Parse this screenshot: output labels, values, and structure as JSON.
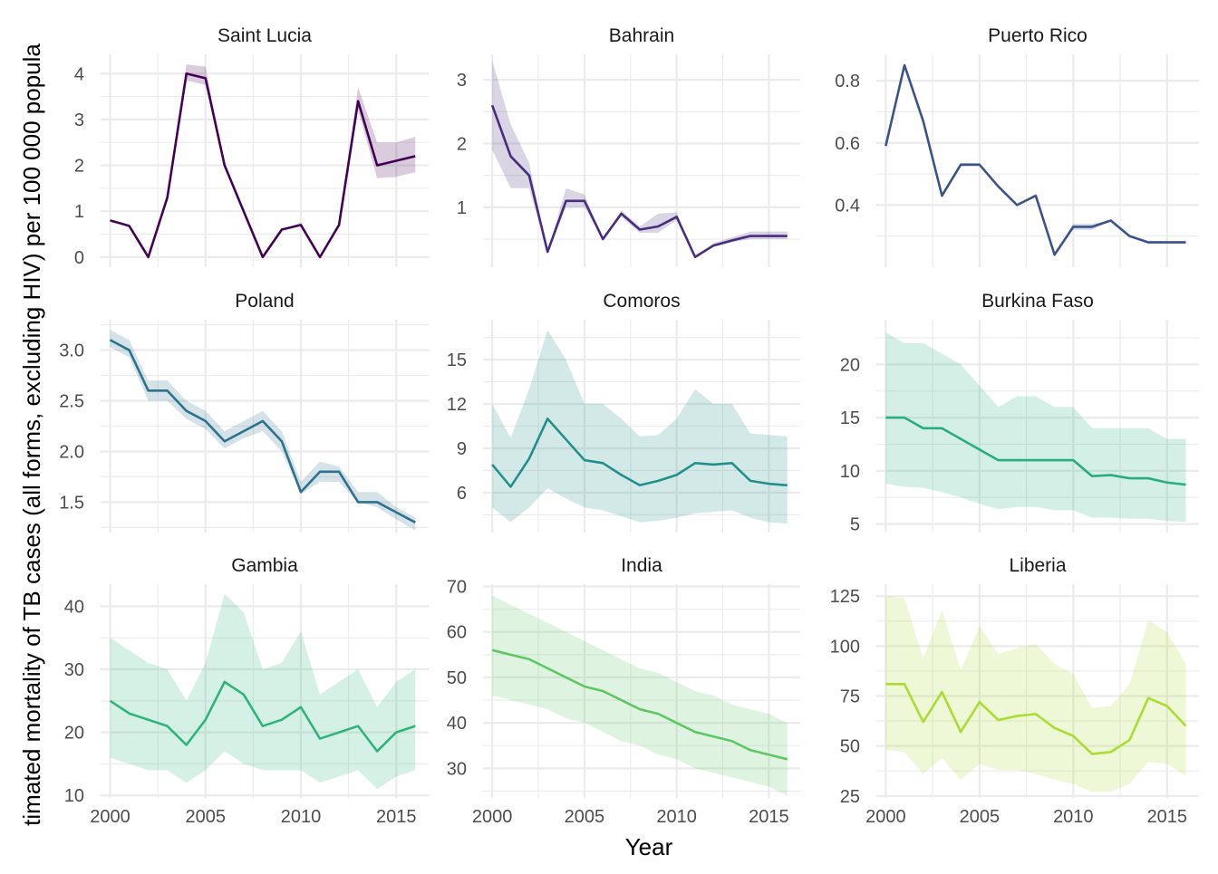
{
  "chart_data": {
    "type": "line",
    "xlabel": "Year",
    "ylabel": "timated mortality of TB cases (all forms, excluding HIV) per 100 000 popula",
    "grid": true,
    "legend": "none",
    "x_ticks": [
      2000,
      2005,
      2010,
      2015
    ],
    "panels": [
      {
        "title": "Saint Lucia",
        "color": "#440154",
        "yticks": [
          0,
          1,
          2,
          3,
          4
        ],
        "ytick_labels": [
          "0",
          "1",
          "2",
          "3",
          "4"
        ],
        "ylim": [
          -0.22,
          4.42
        ],
        "x": [
          2000,
          2001,
          2002,
          2003,
          2004,
          2005,
          2006,
          2007,
          2008,
          2009,
          2010,
          2011,
          2012,
          2013,
          2014,
          2015,
          2016
        ],
        "values": [
          0.8,
          0.68,
          0,
          1.3,
          4.0,
          3.9,
          2.0,
          1.0,
          0,
          0.6,
          0.7,
          0,
          0.7,
          3.4,
          2.0,
          2.1,
          2.2
        ],
        "lower": [
          0.8,
          0.68,
          0,
          1.3,
          3.85,
          3.75,
          2.0,
          1.0,
          0,
          0.6,
          0.68,
          0,
          0.7,
          3.2,
          1.72,
          1.75,
          1.85
        ],
        "upper": [
          0.8,
          0.68,
          0,
          1.3,
          4.2,
          4.15,
          2.0,
          1.0,
          0,
          0.6,
          0.75,
          0,
          0.7,
          3.7,
          2.5,
          2.5,
          2.62
        ]
      },
      {
        "title": "Bahrain",
        "color": "#472D7B",
        "yticks": [
          1,
          2,
          3
        ],
        "ytick_labels": [
          "1",
          "2",
          "3"
        ],
        "ylim": [
          0.06,
          3.4
        ],
        "x": [
          2000,
          2001,
          2002,
          2003,
          2004,
          2005,
          2006,
          2007,
          2008,
          2009,
          2010,
          2011,
          2012,
          2013,
          2014,
          2015,
          2016
        ],
        "values": [
          2.6,
          1.8,
          1.5,
          0.3,
          1.1,
          1.1,
          0.5,
          0.9,
          0.65,
          0.7,
          0.85,
          0.22,
          0.4,
          0.48,
          0.55,
          0.55,
          0.55
        ],
        "lower": [
          1.9,
          1.3,
          1.3,
          0.3,
          1.0,
          1.0,
          0.5,
          0.85,
          0.6,
          0.6,
          0.8,
          0.22,
          0.38,
          0.45,
          0.5,
          0.5,
          0.5
        ],
        "upper": [
          3.3,
          2.3,
          1.7,
          0.3,
          1.3,
          1.2,
          0.5,
          0.95,
          0.7,
          0.9,
          0.92,
          0.22,
          0.44,
          0.53,
          0.62,
          0.62,
          0.62
        ]
      },
      {
        "title": "Puerto Rico",
        "color": "#3B528B",
        "yticks": [
          0.4,
          0.6,
          0.8
        ],
        "ytick_labels": [
          "0.4",
          "0.6",
          "0.8"
        ],
        "ylim": [
          0.2,
          0.885
        ],
        "x": [
          2000,
          2001,
          2002,
          2003,
          2004,
          2005,
          2006,
          2007,
          2008,
          2009,
          2010,
          2011,
          2012,
          2013,
          2014,
          2015,
          2016
        ],
        "values": [
          0.59,
          0.85,
          0.67,
          0.43,
          0.53,
          0.53,
          0.46,
          0.4,
          0.43,
          0.24,
          0.33,
          0.33,
          0.35,
          0.3,
          0.28,
          0.28,
          0.28
        ],
        "lower": [
          0.59,
          0.85,
          0.67,
          0.43,
          0.525,
          0.525,
          0.46,
          0.4,
          0.43,
          0.24,
          0.32,
          0.32,
          0.35,
          0.295,
          0.275,
          0.275,
          0.275
        ],
        "upper": [
          0.59,
          0.85,
          0.67,
          0.43,
          0.535,
          0.535,
          0.46,
          0.4,
          0.43,
          0.24,
          0.34,
          0.34,
          0.35,
          0.305,
          0.285,
          0.285,
          0.285
        ]
      },
      {
        "title": "Poland",
        "color": "#2C728E",
        "yticks": [
          1.5,
          2.0,
          2.5,
          3.0
        ],
        "ytick_labels": [
          "1.5",
          "2.0",
          "2.5",
          "3.0"
        ],
        "ylim": [
          1.2,
          3.3
        ],
        "x": [
          2000,
          2001,
          2002,
          2003,
          2004,
          2005,
          2006,
          2007,
          2008,
          2009,
          2010,
          2011,
          2012,
          2013,
          2014,
          2015,
          2016
        ],
        "values": [
          3.1,
          3.0,
          2.6,
          2.6,
          2.4,
          2.3,
          2.1,
          2.2,
          2.3,
          2.1,
          1.6,
          1.8,
          1.8,
          1.5,
          1.5,
          1.4,
          1.3
        ],
        "lower": [
          3.03,
          2.93,
          2.5,
          2.5,
          2.32,
          2.22,
          2.03,
          2.13,
          2.2,
          2.0,
          1.58,
          1.7,
          1.7,
          1.5,
          1.45,
          1.33,
          1.22
        ],
        "upper": [
          3.2,
          3.1,
          2.7,
          2.7,
          2.5,
          2.4,
          2.2,
          2.3,
          2.4,
          2.2,
          1.7,
          1.9,
          1.85,
          1.6,
          1.6,
          1.45,
          1.35
        ]
      },
      {
        "title": "Comoros",
        "color": "#21908C",
        "yticks": [
          6,
          9,
          12,
          15
        ],
        "ytick_labels": [
          "6",
          "9",
          "12",
          "15"
        ],
        "ylim": [
          3.3,
          17.7
        ],
        "x": [
          2000,
          2001,
          2002,
          2003,
          2004,
          2005,
          2006,
          2007,
          2008,
          2009,
          2010,
          2011,
          2012,
          2013,
          2014,
          2015,
          2016
        ],
        "values": [
          7.9,
          6.4,
          8.3,
          11.0,
          9.6,
          8.2,
          8.0,
          7.2,
          6.5,
          6.8,
          7.2,
          8.0,
          7.9,
          8.0,
          6.8,
          6.6,
          6.5
        ],
        "lower": [
          5.0,
          4.0,
          5.0,
          6.3,
          5.6,
          5.0,
          4.8,
          4.4,
          4.0,
          4.1,
          4.3,
          4.6,
          4.7,
          4.8,
          4.3,
          4.0,
          3.9
        ],
        "upper": [
          12.0,
          9.7,
          13.0,
          17.0,
          15.0,
          12.0,
          12.0,
          11.0,
          9.8,
          9.9,
          11.0,
          13.0,
          12.0,
          12.0,
          10.0,
          9.9,
          9.8
        ]
      },
      {
        "title": "Burkina Faso",
        "color": "#27AD81",
        "yticks": [
          5,
          10,
          15,
          20
        ],
        "ytick_labels": [
          "5",
          "10",
          "15",
          "20"
        ],
        "ylim": [
          4.2,
          24.2
        ],
        "x": [
          2000,
          2001,
          2002,
          2003,
          2004,
          2005,
          2006,
          2007,
          2008,
          2009,
          2010,
          2011,
          2012,
          2013,
          2014,
          2015,
          2016
        ],
        "values": [
          15.0,
          15.0,
          14.0,
          14.0,
          13.0,
          12.0,
          11.0,
          11.0,
          11.0,
          11.0,
          11.0,
          9.5,
          9.6,
          9.3,
          9.3,
          8.9,
          8.7
        ],
        "lower": [
          8.8,
          8.5,
          8.4,
          8.0,
          7.5,
          6.9,
          6.4,
          6.6,
          6.6,
          6.3,
          6.3,
          5.6,
          5.6,
          5.5,
          5.5,
          5.3,
          5.2
        ],
        "upper": [
          23.0,
          22.0,
          22.0,
          21.0,
          20.0,
          18.0,
          16.0,
          17.0,
          17.0,
          16.0,
          16.0,
          14.0,
          14.0,
          14.0,
          14.0,
          13.0,
          13.0
        ]
      },
      {
        "title": "Gambia",
        "color": "#2FB47C",
        "yticks": [
          10,
          20,
          30,
          40
        ],
        "ytick_labels": [
          "10",
          "20",
          "30",
          "40"
        ],
        "ylim": [
          9.6,
          43.5
        ],
        "x": [
          2000,
          2001,
          2002,
          2003,
          2004,
          2005,
          2006,
          2007,
          2008,
          2009,
          2010,
          2011,
          2012,
          2013,
          2014,
          2015,
          2016
        ],
        "values": [
          25,
          23,
          22,
          21,
          18,
          22,
          28,
          26,
          21,
          22,
          24,
          19,
          20,
          21,
          17,
          20,
          21
        ],
        "lower": [
          16,
          15,
          14,
          14,
          12,
          14,
          17,
          15,
          14,
          14,
          14,
          12,
          13,
          14,
          11,
          13,
          14
        ],
        "upper": [
          35,
          33,
          31,
          30,
          25,
          31,
          42,
          39,
          30,
          31,
          36,
          26,
          28,
          30,
          24,
          28,
          30
        ]
      },
      {
        "title": "India",
        "color": "#5DC863",
        "yticks": [
          30,
          40,
          50,
          60,
          70
        ],
        "ytick_labels": [
          "30",
          "40",
          "50",
          "60",
          "70"
        ],
        "ylim": [
          23.5,
          70.5
        ],
        "x": [
          2000,
          2001,
          2002,
          2003,
          2004,
          2005,
          2006,
          2007,
          2008,
          2009,
          2010,
          2011,
          2012,
          2013,
          2014,
          2015,
          2016
        ],
        "values": [
          56,
          55,
          54,
          52,
          50,
          48,
          47,
          45,
          43,
          42,
          40,
          38,
          37,
          36,
          34,
          33,
          32
        ],
        "lower": [
          46,
          45,
          44,
          43,
          41,
          40,
          38,
          36,
          35,
          33,
          32,
          30,
          29,
          28,
          27,
          26,
          24
        ],
        "upper": [
          68,
          66,
          64,
          62,
          60,
          58,
          56,
          54,
          52,
          51,
          49,
          47,
          46,
          44,
          43,
          42,
          40
        ]
      },
      {
        "title": "Liberia",
        "color": "#AADC32",
        "yticks": [
          25,
          50,
          75,
          100,
          125
        ],
        "ytick_labels": [
          "25",
          "50",
          "75",
          "100",
          "125"
        ],
        "ylim": [
          24,
          131
        ],
        "x": [
          2000,
          2001,
          2002,
          2003,
          2004,
          2005,
          2006,
          2007,
          2008,
          2009,
          2010,
          2011,
          2012,
          2013,
          2014,
          2015,
          2016
        ],
        "values": [
          81,
          81,
          62,
          77,
          57,
          72,
          63,
          65,
          66,
          59,
          55,
          46,
          47,
          53,
          74,
          70,
          60
        ],
        "lower": [
          48,
          47,
          36,
          44,
          33,
          41,
          38,
          38,
          36,
          33,
          31,
          27,
          27,
          31,
          42,
          41,
          35
        ],
        "upper": [
          125,
          124,
          94,
          118,
          88,
          110,
          96,
          99,
          101,
          91,
          86,
          69,
          70,
          81,
          113,
          107,
          91
        ]
      }
    ]
  }
}
